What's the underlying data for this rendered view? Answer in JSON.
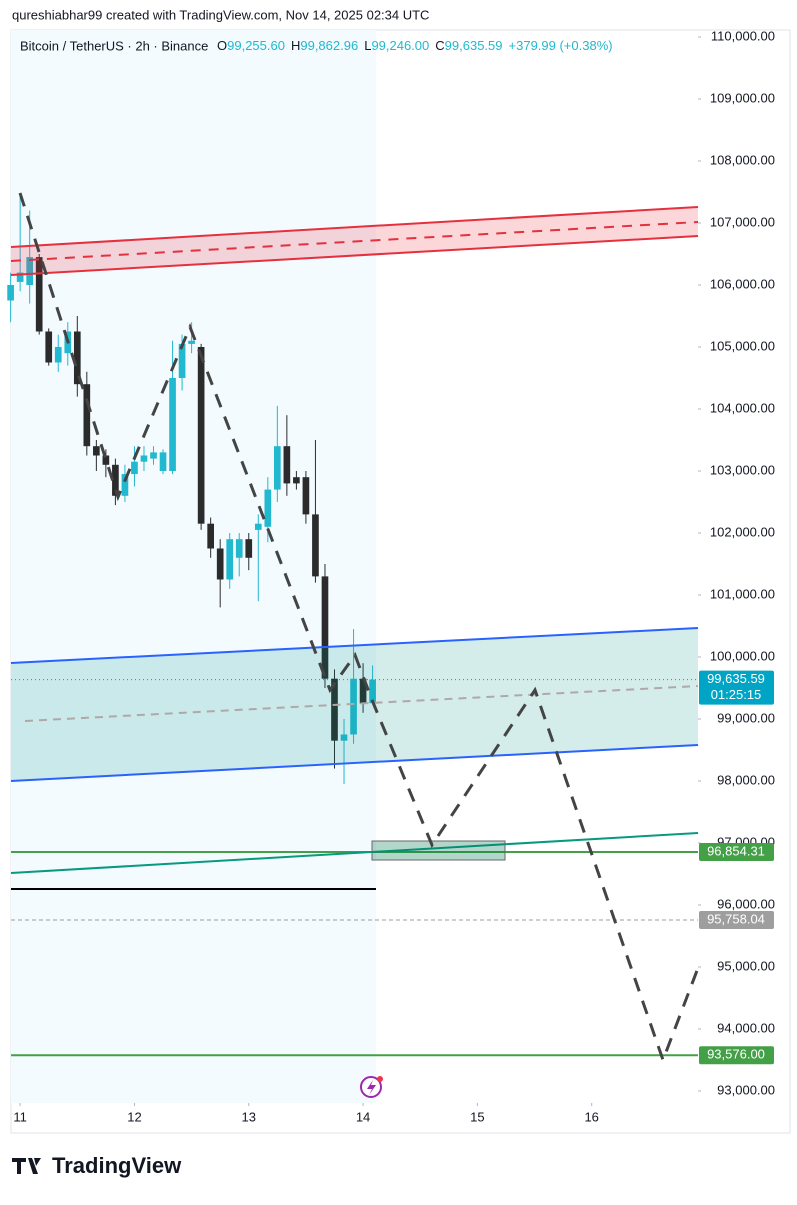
{
  "header": "qureshiabhar99 created with TradingView.com, Nov 14, 2025 02:34 UTC",
  "footer": "TradingView",
  "chart_data": {
    "type": "candlestick",
    "symbol": "Bitcoin / TetherUS · 2h · Binance",
    "legend": [
      {
        "key": "O",
        "value": "99,255.60"
      },
      {
        "key": "H",
        "value": "99,862.96"
      },
      {
        "key": "L",
        "value": "99,246.00"
      },
      {
        "key": "C",
        "value": "99,635.59"
      }
    ],
    "change": "+379.99 (+0.38%)",
    "up_color": "#22b8cf",
    "down_color": "#2b2b2b",
    "x": [
      10.9167,
      11.0,
      11.0833,
      11.1667,
      11.25,
      11.3333,
      11.4167,
      11.5,
      11.5833,
      11.6667,
      11.75,
      11.8333,
      11.9167,
      12.0,
      12.0833,
      12.1667,
      12.25,
      12.3333,
      12.4167,
      12.5,
      12.5833,
      12.6667,
      12.75,
      12.8333,
      12.9167,
      13.0,
      13.0833,
      13.1667,
      13.25,
      13.3333,
      13.4167,
      13.5,
      13.5833,
      13.6667,
      13.75,
      13.8333,
      13.9167,
      14.0,
      14.0833
    ],
    "open": [
      105750,
      106050,
      106000,
      106450,
      105250,
      104750,
      104900,
      105250,
      104400,
      103400,
      103250,
      103100,
      102600,
      102950,
      103150,
      103200,
      103000,
      103000,
      104500,
      105050,
      105000,
      102150,
      101750,
      101250,
      101600,
      101900,
      102050,
      102100,
      102700,
      103400,
      102900,
      102900,
      102300,
      101300,
      99650,
      98650,
      98750,
      99650,
      99255.6
    ],
    "high": [
      106200,
      107450,
      107200,
      106500,
      105300,
      105200,
      105400,
      105500,
      104600,
      103500,
      103350,
      103200,
      103100,
      103400,
      103400,
      103400,
      103350,
      105100,
      105200,
      105400,
      105050,
      102250,
      101900,
      102000,
      102000,
      102000,
      102300,
      102900,
      104050,
      103900,
      103000,
      103000,
      103500,
      101500,
      99800,
      99000,
      100450,
      99900,
      99862.96
    ],
    "low": [
      105400,
      105900,
      105700,
      105200,
      104700,
      104600,
      104700,
      104200,
      103250,
      103000,
      102900,
      102450,
      102500,
      102750,
      103000,
      103100,
      102950,
      102950,
      104300,
      104900,
      102050,
      101600,
      100800,
      101100,
      101300,
      101400,
      100900,
      101850,
      102500,
      102600,
      102700,
      102150,
      101200,
      99500,
      98200,
      97950,
      98600,
      99100,
      99246
    ],
    "close": [
      106000,
      106200,
      106450,
      105250,
      104750,
      105000,
      105250,
      104400,
      103400,
      103250,
      103100,
      102600,
      102950,
      103150,
      103250,
      103300,
      103300,
      104500,
      105050,
      105100,
      102150,
      101750,
      101250,
      101900,
      101900,
      101600,
      102150,
      102700,
      103400,
      102800,
      102800,
      102300,
      101300,
      99650,
      98650,
      98750,
      99650,
      99250,
      99635.59
    ],
    "xlim": [
      10.92,
      16.93
    ],
    "xticks": [
      11,
      12,
      13,
      14,
      15,
      16
    ],
    "ylim": [
      92806,
      110113
    ],
    "yticks": [
      {
        "value": 93000,
        "label": "93,000.00"
      },
      {
        "value": 94000,
        "label": "94,000.00"
      },
      {
        "value": 95000,
        "label": "95,000.00"
      },
      {
        "value": 96000,
        "label": "96,000.00"
      },
      {
        "value": 97000,
        "label": "97,000.00"
      },
      {
        "value": 98000,
        "label": "98,000.00"
      },
      {
        "value": 99000,
        "label": "99,000.00"
      },
      {
        "value": 100000,
        "label": "100,000.00"
      },
      {
        "value": 101000,
        "label": "101,000.00"
      },
      {
        "value": 102000,
        "label": "102,000.00"
      },
      {
        "value": 103000,
        "label": "103,000.00"
      },
      {
        "value": 104000,
        "label": "104,000.00"
      },
      {
        "value": 105000,
        "label": "105,000.00"
      },
      {
        "value": 106000,
        "label": "106,000.00"
      },
      {
        "value": 107000,
        "label": "107,000.00"
      },
      {
        "value": 108000,
        "label": "108,000.00"
      },
      {
        "value": 109000,
        "label": "109,000.00"
      },
      {
        "value": 110000,
        "label": "110,000.00"
      }
    ],
    "price_lines": [
      {
        "value": 99635.59,
        "label": "99,635.59",
        "countdown": "01:25:15",
        "color": "#00a4c4",
        "style": "dotted"
      },
      {
        "value": 96854.31,
        "label": "96,854.31",
        "color": "#43a047",
        "style": "solid"
      },
      {
        "value": 95758.04,
        "label": "95,758.04",
        "color": "#9e9e9e",
        "style": "dashed"
      },
      {
        "value": 93576.0,
        "label": "93,576.00",
        "color": "#43a047",
        "style": "solid"
      }
    ]
  }
}
